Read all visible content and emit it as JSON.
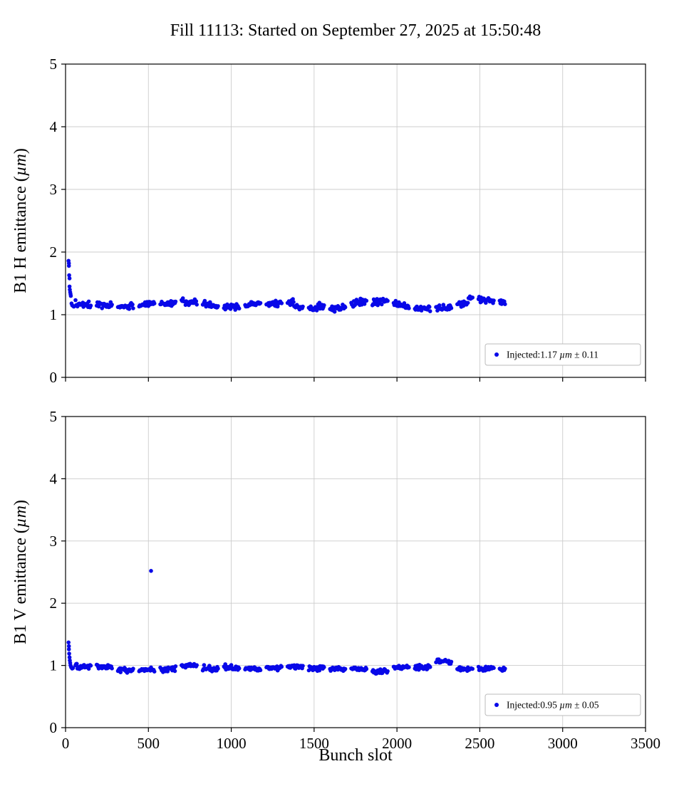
{
  "title": "Fill 11113: Started on September 27, 2025 at 15:50:48",
  "xlabel": "Bunch slot",
  "marker_color": "#0808e8",
  "grid_color": "#cccccc",
  "spine_color": "#000000",
  "chart_data": [
    {
      "type": "scatter",
      "panel": "top",
      "ylabel": "B1 H emittance (µm)",
      "xlabel": "",
      "xlim": [
        0,
        3500
      ],
      "ylim": [
        0,
        5
      ],
      "xticks": [
        0,
        500,
        1000,
        1500,
        2000,
        2500,
        3000,
        3500
      ],
      "yticks": [
        0,
        1,
        2,
        3,
        4,
        5
      ],
      "grid": true,
      "show_x_tick_labels": false,
      "legend": {
        "position": "lower right",
        "label": "Injected:1.17 µm ± 0.11"
      },
      "series": {
        "name": "Injected",
        "summary_mean": 1.17,
        "summary_std": 0.11,
        "baseline_mean": 1.16,
        "noise_std": 0.025,
        "seed": 7,
        "trains": {
          "first_slot": 60,
          "last_slot": 2655,
          "train_length": 96,
          "gap": 32,
          "slot_step": 4
        },
        "wobble": {
          "amp": 0.04,
          "period": 620,
          "phase": 1.3
        },
        "bumps": [
          {
            "from": 1380,
            "to": 1520,
            "delta": -0.05
          },
          {
            "from": 2430,
            "to": 2620,
            "delta": 0.05
          }
        ],
        "pilot_points": [
          [
            18,
            1.86
          ],
          [
            20,
            1.82
          ],
          [
            20,
            1.78
          ],
          [
            22,
            1.63
          ],
          [
            24,
            1.58
          ],
          [
            24,
            1.45
          ],
          [
            26,
            1.4
          ],
          [
            28,
            1.36
          ],
          [
            30,
            1.33
          ],
          [
            32,
            1.3
          ],
          [
            36,
            1.18
          ],
          [
            40,
            1.15
          ],
          [
            45,
            1.14
          ],
          [
            50,
            1.13
          ]
        ],
        "outlier_points": []
      }
    },
    {
      "type": "scatter",
      "panel": "bottom",
      "ylabel": "B1 V emittance (µm)",
      "xlabel": "Bunch slot",
      "xlim": [
        0,
        3500
      ],
      "ylim": [
        0,
        5
      ],
      "xticks": [
        0,
        500,
        1000,
        1500,
        2000,
        2500,
        3000,
        3500
      ],
      "yticks": [
        0,
        1,
        2,
        3,
        4,
        5
      ],
      "grid": true,
      "show_x_tick_labels": true,
      "legend": {
        "position": "lower right",
        "label": "Injected:0.95 µm ± 0.05"
      },
      "series": {
        "name": "Injected",
        "summary_mean": 0.95,
        "summary_std": 0.05,
        "baseline_mean": 0.95,
        "noise_std": 0.02,
        "seed": 13,
        "trains": {
          "first_slot": 60,
          "last_slot": 2655,
          "train_length": 96,
          "gap": 32,
          "slot_step": 4
        },
        "wobble": {
          "amp": 0.025,
          "period": 700,
          "phase": 0.6
        },
        "bumps": [
          {
            "from": 2230,
            "to": 2360,
            "delta": 0.07
          }
        ],
        "pilot_points": [
          [
            18,
            1.37
          ],
          [
            20,
            1.31
          ],
          [
            20,
            1.26
          ],
          [
            22,
            1.19
          ],
          [
            24,
            1.13
          ],
          [
            26,
            1.08
          ],
          [
            28,
            1.04
          ],
          [
            30,
            1.0
          ],
          [
            34,
            0.97
          ],
          [
            40,
            0.95
          ],
          [
            45,
            0.96
          ]
        ],
        "outlier_points": [
          [
            516,
            2.52
          ]
        ]
      }
    }
  ]
}
